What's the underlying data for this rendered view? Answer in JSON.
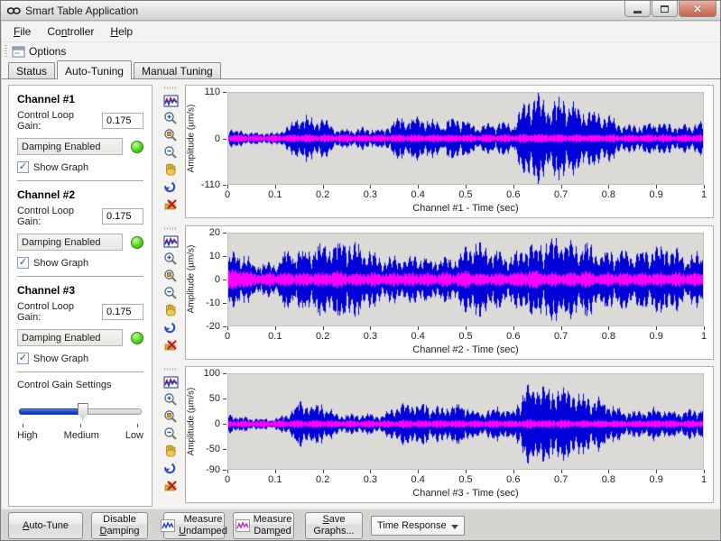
{
  "window": {
    "title": "Smart Table Application"
  },
  "menu": {
    "items": [
      {
        "prefix": "",
        "mnemonic": "F",
        "suffix": "ile"
      },
      {
        "prefix": "Co",
        "mnemonic": "n",
        "suffix": "troller"
      },
      {
        "prefix": "",
        "mnemonic": "H",
        "suffix": "elp"
      }
    ]
  },
  "toolbar": {
    "options_label": "Options"
  },
  "tabs": [
    {
      "label": "Status",
      "active": false
    },
    {
      "label": "Auto-Tuning",
      "active": true
    },
    {
      "label": "Manual Tuning",
      "active": false
    }
  ],
  "channels": [
    {
      "title": "Channel #1",
      "gain_label": "Control Loop Gain:",
      "gain_value": "0.175",
      "damping_label": "Damping Enabled",
      "led_color": "#52d41d",
      "show_graph_label": "Show Graph",
      "show_graph_checked": true
    },
    {
      "title": "Channel #2",
      "gain_label": "Control Loop Gain:",
      "gain_value": "0.175",
      "damping_label": "Damping Enabled",
      "led_color": "#52d41d",
      "show_graph_label": "Show Graph",
      "show_graph_checked": true
    },
    {
      "title": "Channel #3",
      "gain_label": "Control Loop Gain:",
      "gain_value": "0.175",
      "damping_label": "Damping Enabled",
      "led_color": "#52d41d",
      "show_graph_label": "Show Graph",
      "show_graph_checked": true
    }
  ],
  "control_gain": {
    "title": "Control Gain Settings",
    "labels": [
      "High",
      "Medium",
      "Low"
    ],
    "position": "Medium"
  },
  "graph_toolbar": {
    "icons": [
      "waveform-graph",
      "zoom-in",
      "zoom-window",
      "zoom-out",
      "pan-hand",
      "undo",
      "clear-graph"
    ]
  },
  "chart_data": [
    {
      "type": "line",
      "xlabel": "Channel #1 - Time (sec)",
      "ylabel": "Amplitude (µm/s)",
      "xlim": [
        0,
        1
      ],
      "ylim": [
        -110,
        110
      ],
      "xticks": [
        0,
        0.1,
        0.2,
        0.3,
        0.4,
        0.5,
        0.6,
        0.7,
        0.8,
        0.9,
        1
      ],
      "yticks": [
        110,
        0,
        -110
      ],
      "plot_bg": "#dbdad6",
      "envelope_step_sec": 0.025,
      "series": [
        {
          "name": "Undamped",
          "color": "#0000d8",
          "envelope": [
            25,
            18,
            15,
            14,
            14,
            28,
            58,
            48,
            50,
            26,
            22,
            24,
            26,
            20,
            45,
            50,
            52,
            46,
            38,
            50,
            48,
            28,
            36,
            42,
            32,
            88,
            110,
            82,
            95,
            86,
            70,
            62,
            55,
            36,
            30,
            34,
            40,
            36,
            30,
            34,
            46
          ]
        },
        {
          "name": "Damped",
          "color": "#ff00ff",
          "envelope": [
            10,
            9,
            8,
            8,
            9,
            10,
            11,
            10,
            10,
            9,
            10,
            9,
            10,
            9,
            10,
            10,
            10,
            9,
            10,
            10,
            10,
            9,
            10,
            10,
            9,
            11,
            12,
            11,
            11,
            10,
            10,
            10,
            10,
            9,
            9,
            10,
            10,
            9,
            9,
            10,
            10
          ]
        }
      ]
    },
    {
      "type": "line",
      "xlabel": "Channel #2 - Time (sec)",
      "ylabel": "Amplitude (µm/s)",
      "xlim": [
        0,
        1
      ],
      "ylim": [
        -20,
        20
      ],
      "xticks": [
        0,
        0.1,
        0.2,
        0.3,
        0.4,
        0.5,
        0.6,
        0.7,
        0.8,
        0.9,
        1
      ],
      "yticks": [
        20,
        10,
        0,
        -10,
        -20
      ],
      "plot_bg": "#dbdad6",
      "envelope_step_sec": 0.025,
      "series": [
        {
          "name": "Undamped",
          "color": "#0000d8",
          "envelope": [
            10,
            12,
            8,
            7,
            8,
            13,
            12,
            14,
            16,
            17,
            17,
            15,
            13,
            9,
            10,
            9,
            11,
            9,
            10,
            9,
            15,
            16,
            14,
            12,
            10,
            15,
            16,
            17,
            17,
            17,
            16,
            13,
            12,
            13,
            12,
            13,
            14,
            15,
            12,
            10,
            12
          ]
        },
        {
          "name": "Damped",
          "color": "#ff00ff",
          "envelope": [
            4,
            5,
            3,
            3,
            3,
            3,
            3,
            3,
            3,
            4,
            3,
            3,
            3,
            3,
            3,
            3,
            3,
            3,
            3,
            3,
            4,
            3,
            3,
            3,
            3,
            4,
            4,
            3,
            3,
            3,
            4,
            3,
            3,
            3,
            3,
            3,
            3,
            3,
            3,
            3,
            3
          ]
        }
      ]
    },
    {
      "type": "line",
      "xlabel": "Channel #3 - Time (sec)",
      "ylabel": "Amplitude (µm/s)",
      "xlim": [
        0,
        1
      ],
      "ylim": [
        -90,
        100
      ],
      "xticks": [
        0,
        0.1,
        0.2,
        0.3,
        0.4,
        0.5,
        0.6,
        0.7,
        0.8,
        0.9,
        1
      ],
      "yticks": [
        100,
        50,
        0,
        -50,
        -90
      ],
      "plot_bg": "#dbdad6",
      "envelope_step_sec": 0.025,
      "series": [
        {
          "name": "Undamped",
          "color": "#0000d8",
          "envelope": [
            20,
            15,
            12,
            11,
            11,
            23,
            48,
            40,
            42,
            21,
            18,
            20,
            21,
            16,
            37,
            41,
            43,
            38,
            31,
            41,
            40,
            23,
            30,
            35,
            26,
            72,
            90,
            67,
            78,
            70,
            57,
            51,
            45,
            30,
            25,
            28,
            33,
            30,
            25,
            28,
            38
          ]
        },
        {
          "name": "Damped",
          "color": "#ff00ff",
          "envelope": [
            8,
            7,
            7,
            7,
            7,
            8,
            8,
            8,
            8,
            7,
            8,
            7,
            8,
            7,
            8,
            8,
            8,
            8,
            8,
            8,
            8,
            7,
            8,
            8,
            7,
            9,
            9,
            8,
            9,
            8,
            8,
            8,
            8,
            7,
            7,
            8,
            8,
            8,
            7,
            8,
            8
          ]
        }
      ]
    }
  ],
  "footer": {
    "auto_tune": {
      "prefix": "",
      "mnemonic": "A",
      "suffix": "uto-Tune"
    },
    "disable_damping": {
      "line1": "Disable",
      "line2": {
        "prefix": "",
        "mnemonic": "D",
        "suffix": "amping"
      }
    },
    "measure_undamped": {
      "line1": "Measure",
      "line2": {
        "prefix": "",
        "mnemonic": "U",
        "suffix": "ndamped"
      }
    },
    "measure_damped": {
      "line1": "Measure",
      "line2": {
        "prefix": "Dam",
        "mnemonic": "p",
        "suffix": "ed"
      }
    },
    "save_graphs": {
      "line1": {
        "prefix": "",
        "mnemonic": "S",
        "suffix": "ave"
      },
      "line2": "Graphs..."
    },
    "response_dropdown": {
      "value": "Time Response"
    }
  }
}
